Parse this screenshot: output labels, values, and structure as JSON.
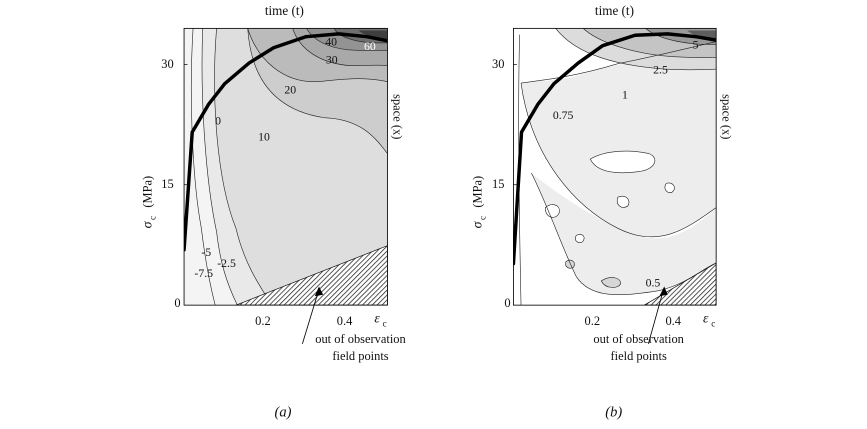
{
  "chart_data": [
    {
      "type": "heatmap",
      "title": "time (t)",
      "caption": "(a)",
      "ylabel_main": "σ",
      "ylabel_sub": "c",
      "ylabel_unit": "(MPa)",
      "right_label": "space (x)",
      "xlabel_main": "ε",
      "xlabel_sub": "c",
      "x_ticks": [
        "0.2",
        "0.4"
      ],
      "y_ticks": [
        "0",
        "15",
        "30"
      ],
      "xlim": [
        0,
        0.5
      ],
      "ylim": [
        0,
        40
      ],
      "contour_labels": [
        "-7.5",
        "-5",
        "-2.5",
        "0",
        "10",
        "20",
        "30",
        "40",
        "60"
      ],
      "annotation": [
        "out of observation",
        "field points"
      ],
      "stress_strain_curve": [
        {
          "x": 0.0,
          "y": 8
        },
        {
          "x": 0.02,
          "y": 25
        },
        {
          "x": 0.06,
          "y": 29
        },
        {
          "x": 0.1,
          "y": 32
        },
        {
          "x": 0.16,
          "y": 35
        },
        {
          "x": 0.22,
          "y": 37.2
        },
        {
          "x": 0.3,
          "y": 38.8
        },
        {
          "x": 0.38,
          "y": 39.2
        },
        {
          "x": 0.45,
          "y": 38.8
        },
        {
          "x": 0.5,
          "y": 38.2
        }
      ],
      "excluded_region_boundary": [
        {
          "x": 0.13,
          "y": 0
        },
        {
          "x": 0.5,
          "y": 15
        }
      ]
    },
    {
      "type": "heatmap",
      "title": "time (t)",
      "caption": "(b)",
      "ylabel_main": "σ",
      "ylabel_sub": "c",
      "ylabel_unit": "(MPa)",
      "right_label": "space (x)",
      "xlabel_main": "ε",
      "xlabel_sub": "c",
      "x_ticks": [
        "0.2",
        "0.4"
      ],
      "y_ticks": [
        "0",
        "15",
        "30"
      ],
      "xlim": [
        0,
        0.5
      ],
      "ylim": [
        0,
        40
      ],
      "contour_labels": [
        "0.5",
        "0.75",
        "1",
        "2.5",
        "5"
      ],
      "annotation": [
        "out of observation",
        "field points"
      ],
      "stress_strain_curve": [
        {
          "x": 0.0,
          "y": 6
        },
        {
          "x": 0.02,
          "y": 25
        },
        {
          "x": 0.06,
          "y": 29
        },
        {
          "x": 0.1,
          "y": 32
        },
        {
          "x": 0.16,
          "y": 35
        },
        {
          "x": 0.22,
          "y": 37.5
        },
        {
          "x": 0.3,
          "y": 39
        },
        {
          "x": 0.38,
          "y": 39.2
        },
        {
          "x": 0.45,
          "y": 38.8
        },
        {
          "x": 0.5,
          "y": 38.3
        }
      ],
      "excluded_region_boundary": [
        {
          "x": 0.32,
          "y": 0
        },
        {
          "x": 0.5,
          "y": 7
        }
      ]
    }
  ]
}
